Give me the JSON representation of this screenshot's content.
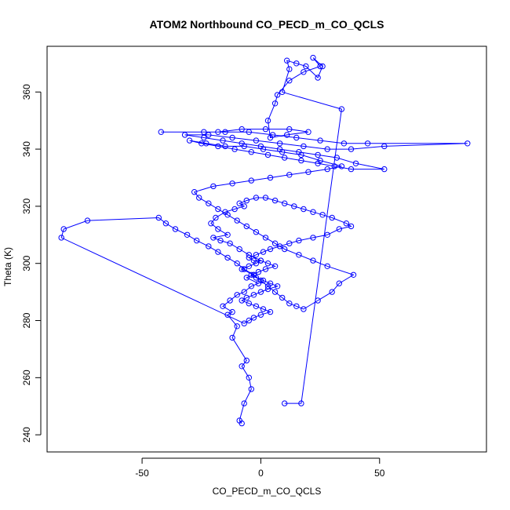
{
  "chart_data": {
    "type": "line",
    "title": "ATOM2 Northbound CO_PECD_m_CO_QCLS",
    "xlabel": "CO_PECD_m_CO_QCLS",
    "ylabel": "Theta (K)",
    "xlim": [
      -90,
      95
    ],
    "ylim": [
      234,
      376
    ],
    "xticks": [
      -50,
      0,
      50
    ],
    "yticks": [
      240,
      260,
      280,
      300,
      320,
      340,
      360
    ],
    "grid": false,
    "legend": "none",
    "markers": "open-circle",
    "series_color": "#0000ff",
    "series": [
      {
        "x": [
          -8,
          -9,
          -7,
          -4,
          -5,
          -8,
          -6,
          -12,
          -10,
          -14,
          -12,
          -16,
          -13,
          -10,
          -7,
          -4,
          -1,
          -6,
          -3,
          -8,
          -5,
          -2,
          0,
          -5,
          -9,
          -13,
          -17,
          -20,
          -14,
          -18,
          -21,
          -19,
          -15,
          -11,
          -7,
          -9,
          -6,
          -2,
          2,
          6,
          10,
          14,
          18,
          22,
          26,
          30,
          36,
          38,
          33,
          28,
          22,
          16,
          12,
          8,
          4,
          1,
          -2,
          -5,
          -3,
          0,
          3,
          6,
          2,
          -1,
          -4,
          -2,
          1,
          4,
          7,
          3,
          0,
          -3,
          -6,
          -8,
          -5,
          -2,
          1,
          4,
          0,
          -3,
          -5,
          -7,
          -84,
          -83,
          -73,
          -43,
          -40,
          -36,
          -31,
          -27,
          -22,
          -18,
          -14,
          -10,
          -7,
          -3,
          0,
          3,
          6,
          9,
          12,
          15,
          18,
          24,
          30,
          33,
          39,
          28,
          22,
          16,
          10,
          6,
          2,
          -2,
          -6,
          -10,
          -14,
          -18,
          -22,
          -26,
          -28,
          -20,
          -12,
          -4,
          4,
          12,
          20,
          28,
          34,
          25,
          17,
          9,
          1,
          -7,
          -15,
          -23,
          -30,
          -25,
          -18,
          -11,
          -4,
          3,
          10,
          17,
          24,
          31,
          38,
          52,
          40,
          32,
          24,
          16,
          8,
          0,
          -8,
          -16,
          -24,
          -32,
          -22,
          -12,
          -2,
          8,
          18,
          28,
          38,
          52,
          87,
          45,
          35,
          25,
          15,
          5,
          -5,
          -15,
          -24,
          -42,
          -18,
          -8,
          2,
          12,
          20,
          11,
          4,
          3,
          6,
          7,
          12,
          18,
          25,
          22,
          26,
          24,
          19,
          15,
          11,
          12,
          9,
          34,
          17,
          10
        ],
        "y": [
          244,
          245,
          251,
          256,
          260,
          264,
          266,
          274,
          278,
          282,
          283,
          285,
          287,
          289,
          290,
          292,
          293,
          295,
          296,
          298,
          299,
          300,
          301,
          303,
          305,
          307,
          308,
          309,
          310,
          312,
          314,
          316,
          318,
          319,
          320,
          321,
          322,
          323,
          323,
          322,
          321,
          320,
          319,
          318,
          317,
          316,
          314,
          313,
          312,
          310,
          309,
          308,
          307,
          306,
          305,
          304,
          303,
          302,
          301,
          301,
          300,
          299,
          298,
          297,
          296,
          295,
          294,
          293,
          292,
          291,
          290,
          289,
          288,
          287,
          286,
          285,
          284,
          283,
          282,
          281,
          280,
          279,
          309,
          312,
          315,
          316,
          314,
          312,
          310,
          308,
          306,
          304,
          302,
          300,
          298,
          296,
          294,
          292,
          290,
          288,
          286,
          285,
          284,
          287,
          290,
          293,
          296,
          299,
          301,
          303,
          305,
          307,
          309,
          311,
          313,
          315,
          317,
          319,
          321,
          323,
          325,
          327,
          328,
          329,
          330,
          331,
          332,
          333,
          334,
          336,
          338,
          339,
          340,
          341,
          341,
          342,
          343,
          342,
          341,
          340,
          339,
          338,
          337,
          336,
          335,
          334,
          333,
          333,
          335,
          337,
          338,
          339,
          340,
          341,
          342,
          343,
          344,
          345,
          345,
          344,
          343,
          342,
          341,
          340,
          340,
          341,
          342,
          342,
          342,
          343,
          344,
          345,
          346,
          346,
          346,
          346,
          346,
          347,
          347,
          347,
          346,
          345,
          344,
          350,
          356,
          359,
          364,
          367,
          369,
          372,
          369,
          365,
          369,
          370,
          371,
          368,
          360,
          354,
          251,
          251
        ]
      }
    ]
  }
}
